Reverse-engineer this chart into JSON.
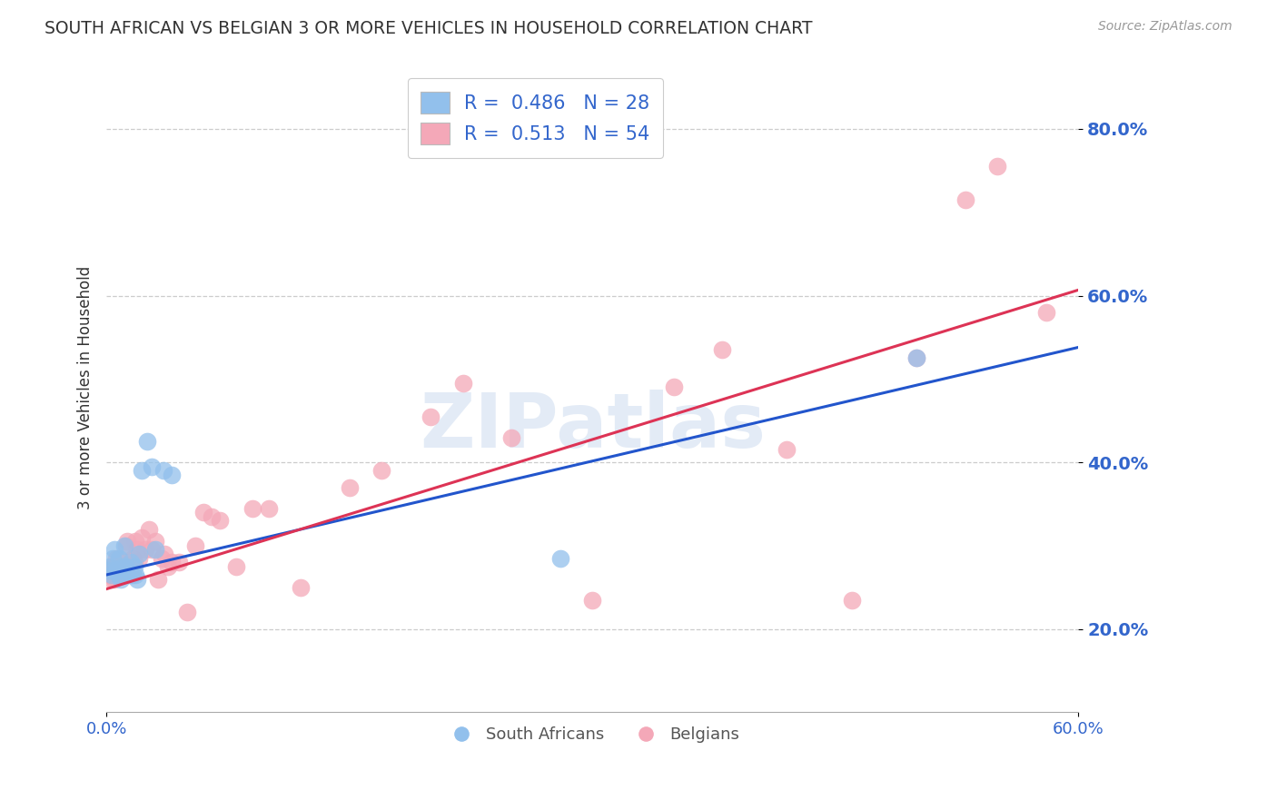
{
  "title": "SOUTH AFRICAN VS BELGIAN 3 OR MORE VEHICLES IN HOUSEHOLD CORRELATION CHART",
  "source": "Source: ZipAtlas.com",
  "ylabel": "3 or more Vehicles in Household",
  "watermark": "ZIPatlas",
  "xlim": [
    0.0,
    0.6
  ],
  "ylim": [
    0.1,
    0.88
  ],
  "yticks": [
    0.2,
    0.4,
    0.6,
    0.8
  ],
  "ytick_labels": [
    "20.0%",
    "40.0%",
    "60.0%",
    "80.0%"
  ],
  "xticks": [
    0.0,
    0.6
  ],
  "xtick_labels": [
    "0.0%",
    "60.0%"
  ],
  "legend_blue_r": "0.486",
  "legend_blue_n": "28",
  "legend_pink_r": "0.513",
  "legend_pink_n": "54",
  "blue_color": "#92C0EC",
  "pink_color": "#F4A8B8",
  "line_blue_color": "#2255CC",
  "line_pink_color": "#DD3355",
  "title_color": "#333333",
  "tick_label_color": "#3366CC",
  "ylabel_color": "#333333",
  "background_color": "#FFFFFF",
  "south_africans_x": [
    0.001,
    0.002,
    0.003,
    0.004,
    0.005,
    0.006,
    0.007,
    0.008,
    0.009,
    0.01,
    0.011,
    0.012,
    0.013,
    0.014,
    0.015,
    0.016,
    0.017,
    0.018,
    0.019,
    0.02,
    0.022,
    0.025,
    0.028,
    0.03,
    0.035,
    0.04,
    0.28,
    0.5
  ],
  "south_africans_y": [
    0.27,
    0.275,
    0.265,
    0.285,
    0.295,
    0.27,
    0.265,
    0.285,
    0.26,
    0.275,
    0.3,
    0.275,
    0.27,
    0.265,
    0.28,
    0.265,
    0.275,
    0.265,
    0.26,
    0.29,
    0.39,
    0.425,
    0.395,
    0.295,
    0.39,
    0.385,
    0.285,
    0.525
  ],
  "belgians_x": [
    0.001,
    0.002,
    0.003,
    0.004,
    0.005,
    0.006,
    0.007,
    0.008,
    0.009,
    0.01,
    0.011,
    0.012,
    0.013,
    0.014,
    0.015,
    0.016,
    0.017,
    0.018,
    0.019,
    0.02,
    0.022,
    0.024,
    0.026,
    0.028,
    0.03,
    0.032,
    0.034,
    0.036,
    0.038,
    0.04,
    0.045,
    0.05,
    0.055,
    0.06,
    0.065,
    0.07,
    0.08,
    0.09,
    0.1,
    0.12,
    0.15,
    0.17,
    0.2,
    0.22,
    0.25,
    0.3,
    0.35,
    0.38,
    0.42,
    0.46,
    0.5,
    0.53,
    0.55,
    0.58
  ],
  "belgians_y": [
    0.27,
    0.265,
    0.26,
    0.275,
    0.26,
    0.285,
    0.27,
    0.275,
    0.265,
    0.275,
    0.28,
    0.3,
    0.305,
    0.275,
    0.265,
    0.285,
    0.28,
    0.305,
    0.295,
    0.285,
    0.31,
    0.295,
    0.32,
    0.295,
    0.305,
    0.26,
    0.285,
    0.29,
    0.275,
    0.28,
    0.28,
    0.22,
    0.3,
    0.34,
    0.335,
    0.33,
    0.275,
    0.345,
    0.345,
    0.25,
    0.37,
    0.39,
    0.455,
    0.495,
    0.43,
    0.235,
    0.49,
    0.535,
    0.415,
    0.235,
    0.525,
    0.715,
    0.755,
    0.58
  ],
  "line_blue_intercept": 0.265,
  "line_blue_slope": 0.455,
  "line_pink_intercept": 0.248,
  "line_pink_slope": 0.598
}
